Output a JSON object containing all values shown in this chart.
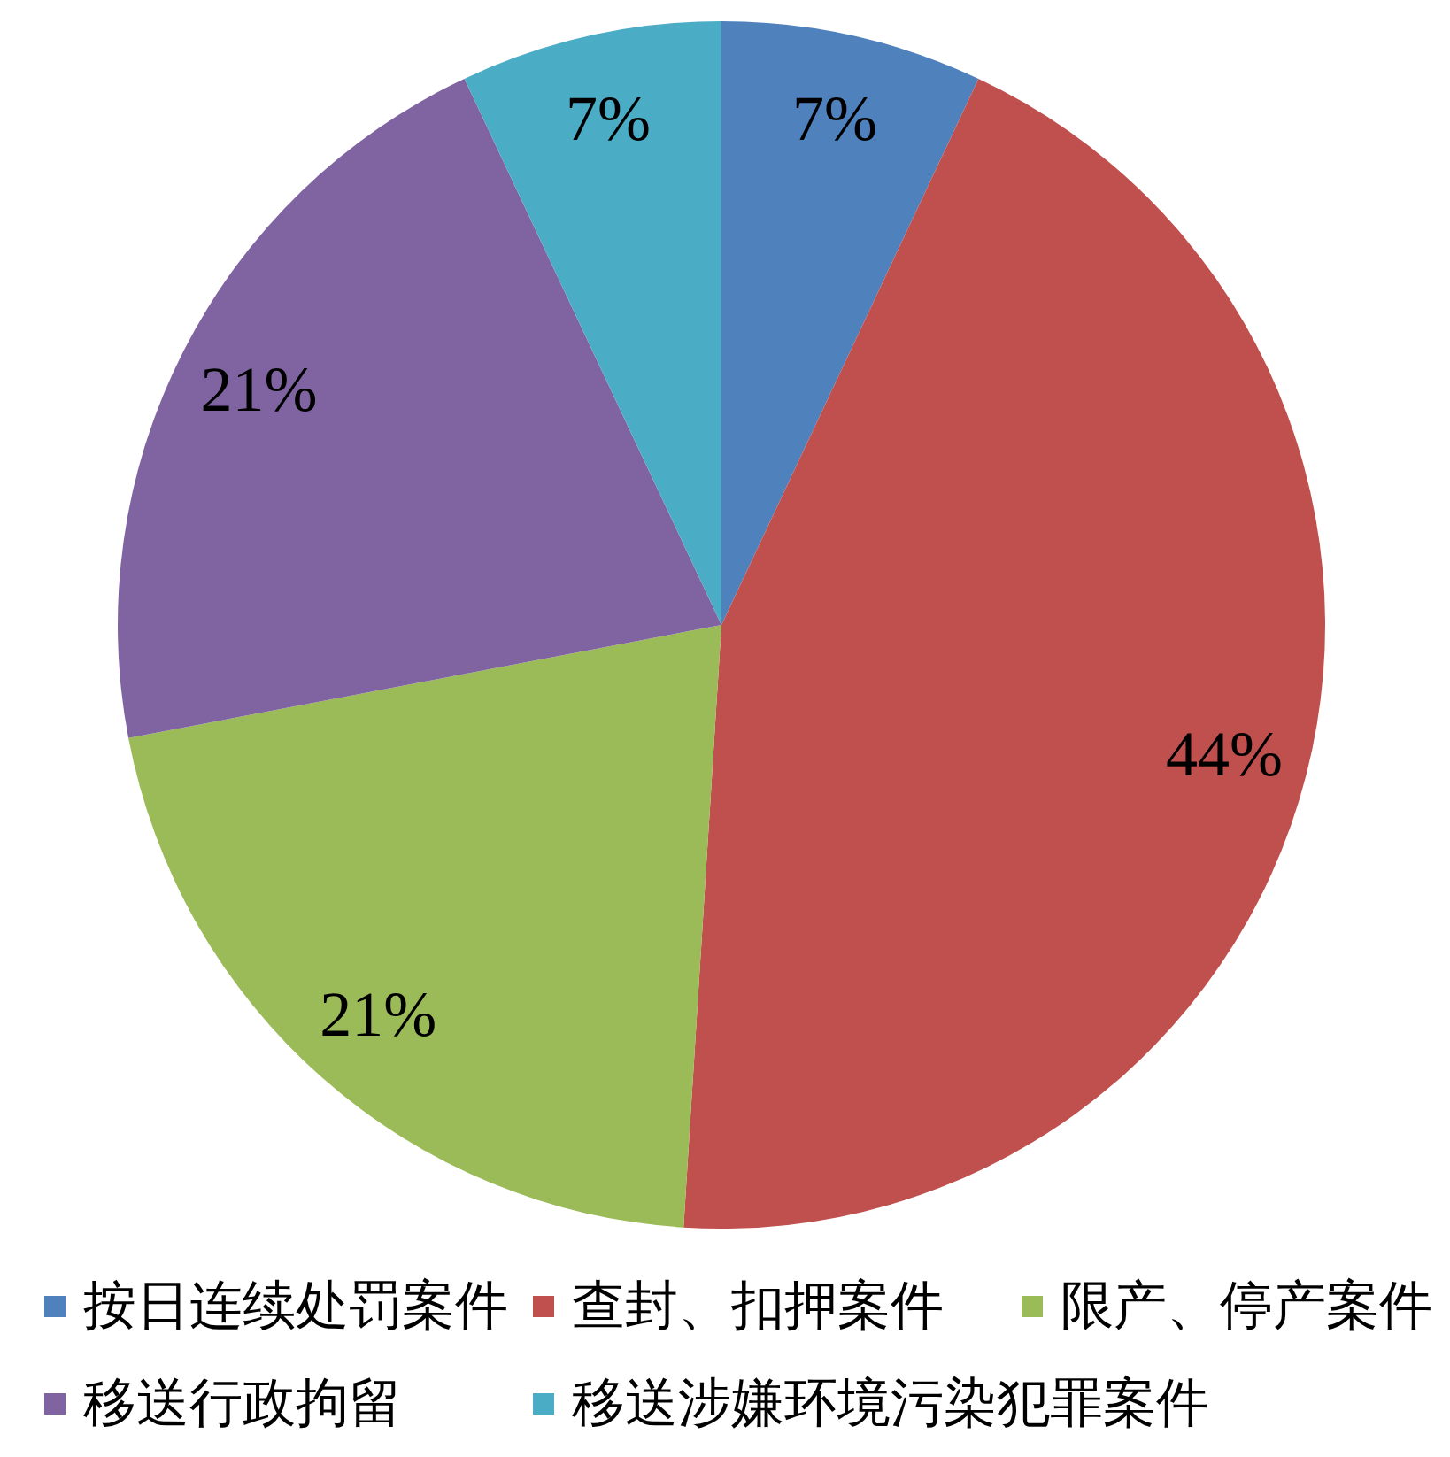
{
  "chart_data": {
    "type": "pie",
    "categories": [
      "按日连续处罚案件",
      "查封、扣押案件",
      "限产、停产案件",
      "移送行政拘留",
      "移送涉嫌环境污染犯罪案件"
    ],
    "values": [
      7,
      44,
      21,
      21,
      7
    ],
    "colors": [
      "#4f81bd",
      "#c0504d",
      "#9bbb59",
      "#8064a2",
      "#4bacc6"
    ],
    "value_labels": [
      "7%",
      "44%",
      "21%",
      "21%",
      "7%"
    ],
    "legend": "bottom"
  }
}
